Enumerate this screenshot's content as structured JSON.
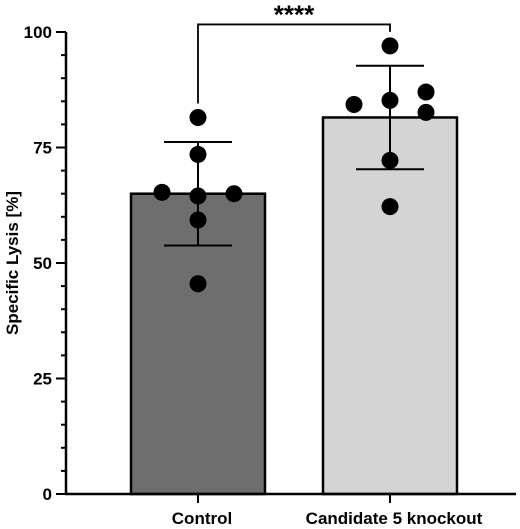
{
  "chart_data": {
    "type": "bar",
    "title": "",
    "xlabel": "",
    "ylabel": "Specific Lysis [%]",
    "ylim": [
      0,
      100
    ],
    "yticks": [
      0,
      25,
      50,
      75,
      100
    ],
    "categories": [
      "Control",
      "Candidate 5 knockout"
    ],
    "series": [
      {
        "values": [
          65,
          81.5
        ],
        "error": [
          11.2,
          11.2
        ],
        "colors": [
          "#6e6e6e",
          "#d4d4d4"
        ],
        "points": [
          [
            81.5,
            73.5,
            65.3,
            64.5,
            65,
            59.3,
            45.5
          ],
          [
            97,
            84.3,
            85.2,
            87,
            82.6,
            72.2,
            62.2
          ]
        ]
      }
    ],
    "significance": {
      "label": "****",
      "between": [
        0,
        1
      ],
      "y": 102.5
    },
    "grid": false,
    "legend": "none"
  }
}
